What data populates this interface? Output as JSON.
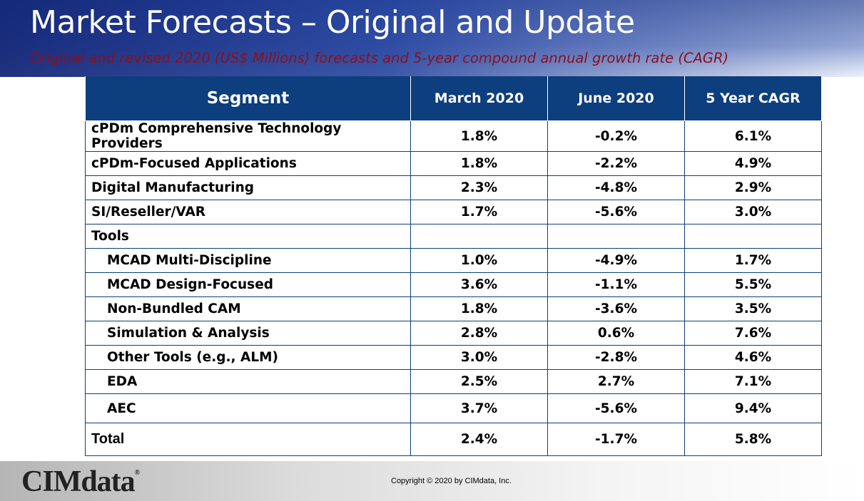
{
  "title": "Market Forecasts – Original and Update",
  "subtitle": "Original and revised 2020 (US$ Millions) forecasts and 5-year compound annual growth rate (CAGR)",
  "table": {
    "headers": [
      "Segment",
      "March 2020",
      "June 2020",
      "5 Year CAGR"
    ],
    "rows": [
      {
        "segment": "cPDm Comprehensive Technology Providers",
        "march": "1.8%",
        "june": "-0.2%",
        "cagr": "6.1%"
      },
      {
        "segment": "cPDm-Focused Applications",
        "march": "1.8%",
        "june": "-2.2%",
        "cagr": "4.9%"
      },
      {
        "segment": "Digital Manufacturing",
        "march": "2.3%",
        "june": "-4.8%",
        "cagr": "2.9%"
      },
      {
        "segment": "SI/Reseller/VAR",
        "march": "1.7%",
        "june": "-5.6%",
        "cagr": "3.0%"
      },
      {
        "segment": "Tools",
        "march": "",
        "june": "",
        "cagr": ""
      },
      {
        "segment": "MCAD Multi-Discipline",
        "march": "1.0%",
        "june": "-4.9%",
        "cagr": "1.7%"
      },
      {
        "segment": "MCAD Design-Focused",
        "march": "3.6%",
        "june": "-1.1%",
        "cagr": "5.5%"
      },
      {
        "segment": "Non-Bundled CAM",
        "march": "1.8%",
        "june": "-3.6%",
        "cagr": "3.5%"
      },
      {
        "segment": "Simulation & Analysis",
        "march": "2.8%",
        "june": "0.6%",
        "cagr": "7.6%"
      },
      {
        "segment": "Other Tools (e.g., ALM)",
        "march": "3.0%",
        "june": "-2.8%",
        "cagr": "4.6%"
      },
      {
        "segment": "EDA",
        "march": "2.5%",
        "june": "2.7%",
        "cagr": "7.1%"
      },
      {
        "segment": "AEC",
        "march": "3.7%",
        "june": "-5.6%",
        "cagr": "9.4%"
      },
      {
        "segment": "Total",
        "march": "2.4%",
        "june": "-1.7%",
        "cagr": "5.8%"
      }
    ]
  },
  "footer": {
    "logo": "CIMdata",
    "logo_mark": "®",
    "copyright": "Copyright © 2020 by CIMdata, Inc."
  },
  "colors": {
    "header_fill": "#0d3e7d",
    "subtitle": "#8b0f1e",
    "title": "#ffffff"
  }
}
